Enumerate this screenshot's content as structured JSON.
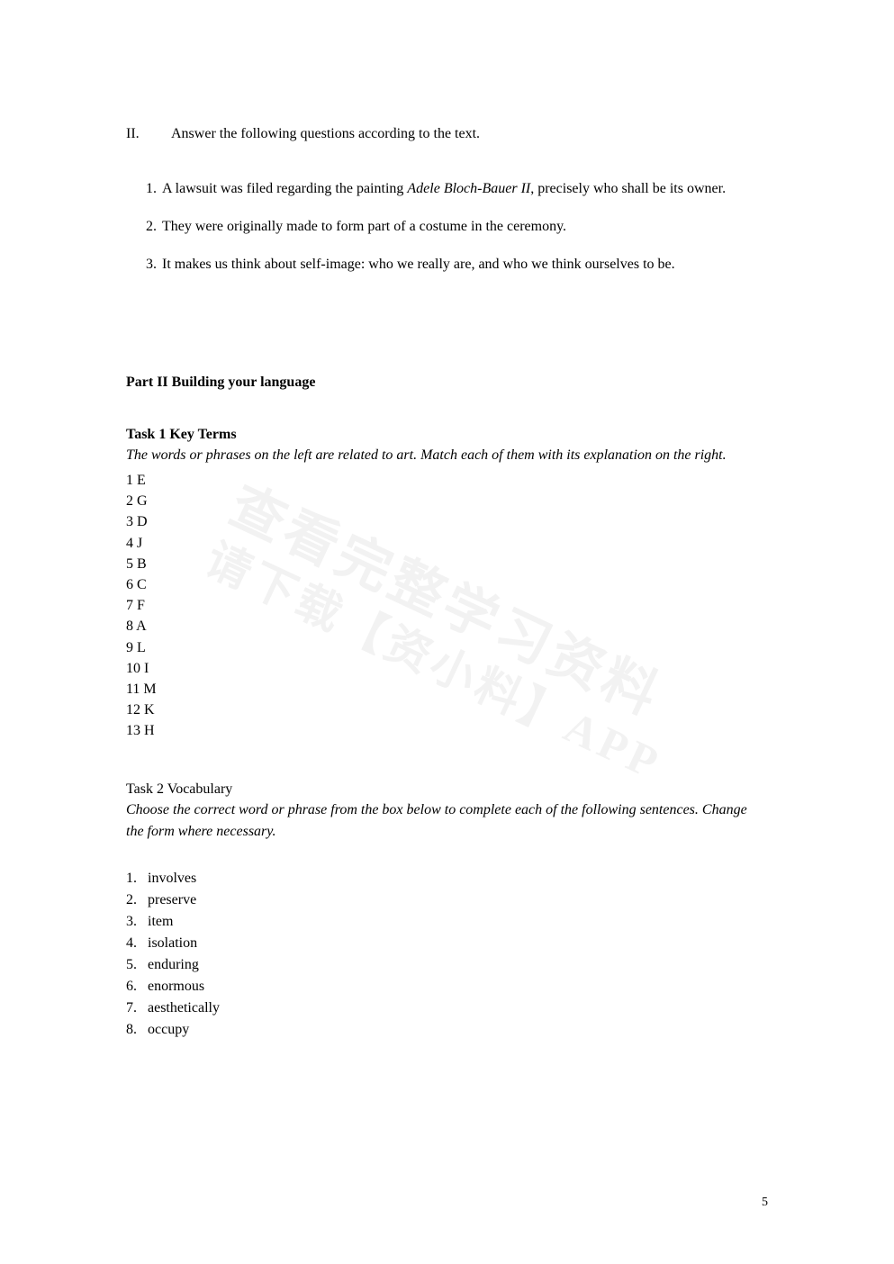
{
  "sectionII": {
    "roman": "II.",
    "heading": "Answer the following questions according to the text.",
    "items": [
      {
        "num": "1.",
        "textBefore": "A lawsuit was filed regarding the painting ",
        "italicTitle": "Adele Bloch-Bauer II",
        "textAfter": ", precisely who shall be its owner."
      },
      {
        "num": "2.",
        "textBefore": "They were originally made to form part of a costume in the ceremony.",
        "italicTitle": "",
        "textAfter": ""
      },
      {
        "num": "3.",
        "textBefore": "It makes us think about self-image: who we really are, and who we think ourselves to be.",
        "italicTitle": "",
        "textAfter": ""
      }
    ]
  },
  "partII": {
    "heading": "Part II Building your language"
  },
  "task1": {
    "heading": "Task 1 Key Terms",
    "instruction": "The words or phrases on the left are related to art. Match each of them with its explanation on the right.",
    "answers": [
      "1 E",
      "2 G",
      "3 D",
      "4 J",
      "5 B",
      "6 C",
      "7 F",
      "8 A",
      "9 L",
      "10 I",
      "11 M",
      "12 K",
      "13 H"
    ]
  },
  "task2": {
    "heading": "Task 2 Vocabulary",
    "instruction": "Choose the correct word or phrase from the box below to complete each of the following sentences. Change the form where necessary.",
    "answers": [
      {
        "num": "1.",
        "word": "involves"
      },
      {
        "num": "2.",
        "word": "preserve"
      },
      {
        "num": "3.",
        "word": "item"
      },
      {
        "num": "4.",
        "word": "isolation"
      },
      {
        "num": "5.",
        "word": "enduring"
      },
      {
        "num": "6.",
        "word": "enormous"
      },
      {
        "num": "7.",
        "word": "aesthetically"
      },
      {
        "num": "8.",
        "word": "occupy"
      }
    ]
  },
  "pageNumber": "5",
  "watermark": {
    "line1": "查看完整学习资料",
    "line2": "请下载【资小料】APP"
  }
}
